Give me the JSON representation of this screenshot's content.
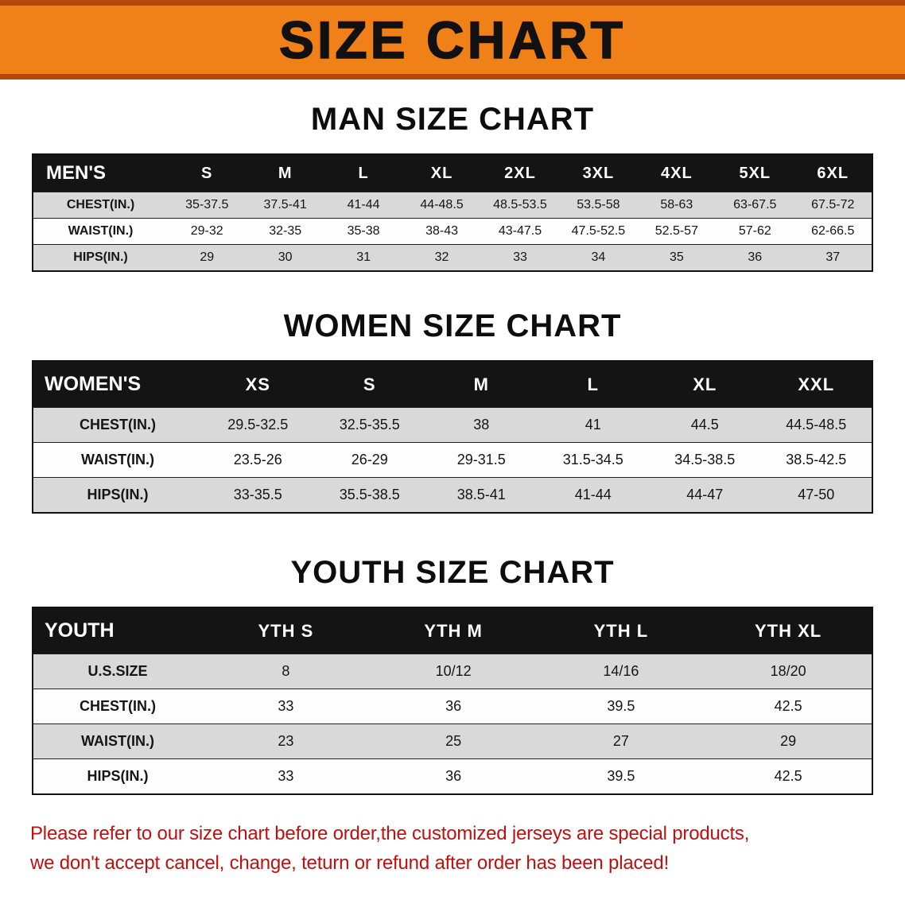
{
  "banner": {
    "title": "SIZE CHART"
  },
  "colors": {
    "banner_bg": "#f08018",
    "banner_stripe": "#b5490a",
    "table_header_bg": "#141414",
    "stripe_row": "#d9d9d9",
    "footer_text": "#bd1111"
  },
  "sections": {
    "men": {
      "heading": "MAN SIZE CHART"
    },
    "women": {
      "heading": "WOMEN SIZE CHART"
    },
    "youth": {
      "heading": "YOUTH SIZE CHART"
    }
  },
  "tables": {
    "men": {
      "header": [
        "MEN'S",
        "S",
        "M",
        "L",
        "XL",
        "2XL",
        "3XL",
        "4XL",
        "5XL",
        "6XL"
      ],
      "rows": [
        [
          "CHEST(IN.)",
          "35-37.5",
          "37.5-41",
          "41-44",
          "44-48.5",
          "48.5-53.5",
          "53.5-58",
          "58-63",
          "63-67.5",
          "67.5-72"
        ],
        [
          "WAIST(IN.)",
          "29-32",
          "32-35",
          "35-38",
          "38-43",
          "43-47.5",
          "47.5-52.5",
          "52.5-57",
          "57-62",
          "62-66.5"
        ],
        [
          "HIPS(IN.)",
          "29",
          "30",
          "31",
          "32",
          "33",
          "34",
          "35",
          "36",
          "37"
        ]
      ]
    },
    "women": {
      "header": [
        "WOMEN'S",
        "XS",
        "S",
        "M",
        "L",
        "XL",
        "XXL"
      ],
      "rows": [
        [
          "CHEST(IN.)",
          "29.5-32.5",
          "32.5-35.5",
          "38",
          "41",
          "44.5",
          "44.5-48.5"
        ],
        [
          "WAIST(IN.)",
          "23.5-26",
          "26-29",
          "29-31.5",
          "31.5-34.5",
          "34.5-38.5",
          "38.5-42.5"
        ],
        [
          "HIPS(IN.)",
          "33-35.5",
          "35.5-38.5",
          "38.5-41",
          "41-44",
          "44-47",
          "47-50"
        ]
      ]
    },
    "youth": {
      "header": [
        "YOUTH",
        "YTH S",
        "YTH M",
        "YTH L",
        "YTH XL"
      ],
      "rows": [
        [
          "U.S.SIZE",
          "8",
          "10/12",
          "14/16",
          "18/20"
        ],
        [
          "CHEST(IN.)",
          "33",
          "36",
          "39.5",
          "42.5"
        ],
        [
          "WAIST(IN.)",
          "23",
          "25",
          "27",
          "29"
        ],
        [
          "HIPS(IN.)",
          "33",
          "36",
          "39.5",
          "42.5"
        ]
      ]
    }
  },
  "footer": {
    "line1": "Please refer to our size chart before order,the customized jerseys are special products,",
    "line2": "we don't accept cancel, change, teturn or refund after order has been placed!"
  }
}
